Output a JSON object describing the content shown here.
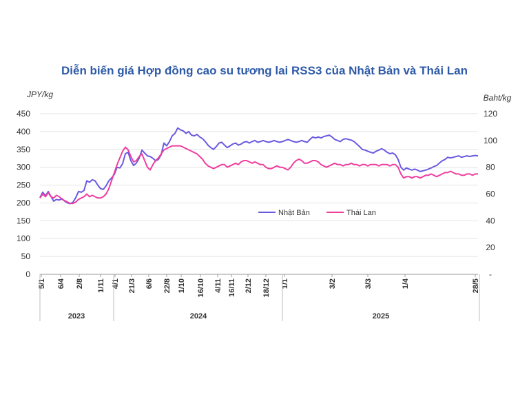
{
  "chart_data": {
    "type": "line",
    "title": "Diễn biến giá Hợp đồng cao su tương lai RSS3 của Nhật Bản và Thái Lan",
    "ylabel_left": "JPY/kg",
    "ylabel_right": "Baht/kg",
    "ylim_left": [
      0,
      450
    ],
    "ylim_right": [
      0,
      120
    ],
    "yticks_left": [
      0,
      50,
      100,
      150,
      200,
      250,
      300,
      350,
      400,
      450
    ],
    "yticks_right": [
      "-",
      "20",
      "40",
      "60",
      "80",
      "100",
      "120"
    ],
    "grid": true,
    "legend": "center",
    "x_tick_labels": [
      "5/1",
      "6/4",
      "2/8",
      "1/11",
      "4/1",
      "21/3",
      "6/6",
      "22/8",
      "1/10",
      "16/10",
      "4/11",
      "16/11",
      "2/12",
      "18/12",
      "1/1",
      "3/2",
      "3/3",
      "1/4",
      "28/5"
    ],
    "years": [
      "2023",
      "2024",
      "2025"
    ],
    "series": [
      {
        "name": "Nhật Bản",
        "axis": "left",
        "color": "#6a5ae0",
        "values": [
          [
            0,
            215
          ],
          [
            4,
            230
          ],
          [
            8,
            220
          ],
          [
            12,
            232
          ],
          [
            16,
            218
          ],
          [
            20,
            205
          ],
          [
            24,
            210
          ],
          [
            28,
            208
          ],
          [
            32,
            212
          ],
          [
            36,
            205
          ],
          [
            40,
            200
          ],
          [
            44,
            198
          ],
          [
            48,
            202
          ],
          [
            52,
            215
          ],
          [
            56,
            232
          ],
          [
            60,
            230
          ],
          [
            64,
            235
          ],
          [
            68,
            262
          ],
          [
            72,
            258
          ],
          [
            76,
            265
          ],
          [
            80,
            262
          ],
          [
            84,
            250
          ],
          [
            88,
            240
          ],
          [
            92,
            238
          ],
          [
            96,
            248
          ],
          [
            100,
            262
          ],
          [
            104,
            270
          ],
          [
            108,
            280
          ],
          [
            112,
            300
          ],
          [
            116,
            298
          ],
          [
            120,
            310
          ],
          [
            124,
            338
          ],
          [
            128,
            342
          ],
          [
            132,
            318
          ],
          [
            136,
            305
          ],
          [
            140,
            312
          ],
          [
            144,
            325
          ],
          [
            148,
            348
          ],
          [
            152,
            340
          ],
          [
            156,
            332
          ],
          [
            160,
            330
          ],
          [
            164,
            325
          ],
          [
            168,
            318
          ],
          [
            172,
            322
          ],
          [
            176,
            335
          ],
          [
            180,
            368
          ],
          [
            184,
            360
          ],
          [
            188,
            372
          ],
          [
            192,
            388
          ],
          [
            196,
            395
          ],
          [
            200,
            410
          ],
          [
            204,
            405
          ],
          [
            208,
            402
          ],
          [
            212,
            395
          ],
          [
            216,
            400
          ],
          [
            220,
            390
          ],
          [
            224,
            388
          ],
          [
            228,
            392
          ],
          [
            232,
            385
          ],
          [
            236,
            380
          ],
          [
            240,
            372
          ],
          [
            244,
            362
          ],
          [
            248,
            355
          ],
          [
            252,
            350
          ],
          [
            256,
            358
          ],
          [
            260,
            368
          ],
          [
            264,
            370
          ],
          [
            268,
            362
          ],
          [
            272,
            355
          ],
          [
            276,
            360
          ],
          [
            280,
            365
          ],
          [
            284,
            368
          ],
          [
            288,
            362
          ],
          [
            292,
            365
          ],
          [
            296,
            370
          ],
          [
            300,
            372
          ],
          [
            304,
            368
          ],
          [
            308,
            372
          ],
          [
            312,
            375
          ],
          [
            316,
            370
          ],
          [
            320,
            372
          ],
          [
            324,
            375
          ],
          [
            328,
            372
          ],
          [
            332,
            370
          ],
          [
            336,
            372
          ],
          [
            340,
            375
          ],
          [
            344,
            372
          ],
          [
            348,
            370
          ],
          [
            352,
            372
          ],
          [
            356,
            375
          ],
          [
            360,
            378
          ],
          [
            364,
            375
          ],
          [
            368,
            372
          ],
          [
            372,
            370
          ],
          [
            376,
            372
          ],
          [
            380,
            375
          ],
          [
            384,
            372
          ],
          [
            388,
            370
          ],
          [
            392,
            378
          ],
          [
            396,
            385
          ],
          [
            400,
            382
          ],
          [
            404,
            385
          ],
          [
            408,
            382
          ],
          [
            412,
            386
          ],
          [
            416,
            388
          ],
          [
            420,
            390
          ],
          [
            424,
            385
          ],
          [
            428,
            378
          ],
          [
            432,
            375
          ],
          [
            436,
            372
          ],
          [
            440,
            378
          ],
          [
            444,
            380
          ],
          [
            448,
            378
          ],
          [
            452,
            376
          ],
          [
            456,
            372
          ],
          [
            460,
            365
          ],
          [
            464,
            358
          ],
          [
            468,
            350
          ],
          [
            472,
            348
          ],
          [
            476,
            345
          ],
          [
            480,
            342
          ],
          [
            484,
            340
          ],
          [
            488,
            345
          ],
          [
            492,
            348
          ],
          [
            496,
            352
          ],
          [
            500,
            348
          ],
          [
            504,
            342
          ],
          [
            508,
            338
          ],
          [
            512,
            340
          ],
          [
            516,
            335
          ],
          [
            520,
            322
          ],
          [
            524,
            300
          ],
          [
            528,
            292
          ],
          [
            532,
            298
          ],
          [
            536,
            295
          ],
          [
            540,
            292
          ],
          [
            544,
            295
          ],
          [
            548,
            292
          ],
          [
            552,
            288
          ],
          [
            556,
            290
          ],
          [
            560,
            292
          ],
          [
            564,
            295
          ],
          [
            568,
            298
          ],
          [
            572,
            302
          ],
          [
            576,
            305
          ],
          [
            580,
            312
          ],
          [
            584,
            318
          ],
          [
            588,
            322
          ],
          [
            592,
            328
          ],
          [
            596,
            326
          ],
          [
            600,
            328
          ],
          [
            604,
            330
          ],
          [
            608,
            332
          ],
          [
            612,
            328
          ],
          [
            616,
            330
          ],
          [
            620,
            332
          ],
          [
            624,
            330
          ],
          [
            628,
            332
          ],
          [
            632,
            333
          ],
          [
            636,
            332
          ]
        ]
      },
      {
        "name": "Thái Lan",
        "axis": "right",
        "color": "#ee3e9f",
        "values": [
          [
            0,
            57
          ],
          [
            4,
            60
          ],
          [
            8,
            58
          ],
          [
            12,
            61
          ],
          [
            16,
            58
          ],
          [
            20,
            57
          ],
          [
            24,
            59
          ],
          [
            28,
            58
          ],
          [
            32,
            56
          ],
          [
            36,
            55
          ],
          [
            40,
            54
          ],
          [
            44,
            53
          ],
          [
            48,
            53
          ],
          [
            52,
            54
          ],
          [
            56,
            56
          ],
          [
            60,
            57
          ],
          [
            64,
            58
          ],
          [
            68,
            60
          ],
          [
            72,
            58
          ],
          [
            76,
            59
          ],
          [
            80,
            58
          ],
          [
            84,
            57
          ],
          [
            88,
            57
          ],
          [
            92,
            58
          ],
          [
            96,
            60
          ],
          [
            100,
            64
          ],
          [
            104,
            70
          ],
          [
            108,
            76
          ],
          [
            112,
            82
          ],
          [
            116,
            87
          ],
          [
            120,
            92
          ],
          [
            124,
            95
          ],
          [
            128,
            93
          ],
          [
            132,
            88
          ],
          [
            136,
            84
          ],
          [
            140,
            85
          ],
          [
            144,
            88
          ],
          [
            148,
            90
          ],
          [
            152,
            85
          ],
          [
            156,
            80
          ],
          [
            160,
            78
          ],
          [
            164,
            82
          ],
          [
            168,
            85
          ],
          [
            172,
            87
          ],
          [
            176,
            90
          ],
          [
            180,
            93
          ],
          [
            184,
            94
          ],
          [
            188,
            95
          ],
          [
            192,
            96
          ],
          [
            196,
            96
          ],
          [
            200,
            96
          ],
          [
            204,
            96
          ],
          [
            208,
            95
          ],
          [
            212,
            94
          ],
          [
            216,
            93
          ],
          [
            220,
            92
          ],
          [
            224,
            91
          ],
          [
            228,
            90
          ],
          [
            232,
            88
          ],
          [
            236,
            86
          ],
          [
            240,
            83
          ],
          [
            244,
            81
          ],
          [
            248,
            80
          ],
          [
            252,
            79
          ],
          [
            256,
            80
          ],
          [
            260,
            81
          ],
          [
            264,
            82
          ],
          [
            268,
            82
          ],
          [
            272,
            80
          ],
          [
            276,
            81
          ],
          [
            280,
            82
          ],
          [
            284,
            83
          ],
          [
            288,
            82
          ],
          [
            292,
            84
          ],
          [
            296,
            85
          ],
          [
            300,
            85
          ],
          [
            304,
            84
          ],
          [
            308,
            83
          ],
          [
            312,
            84
          ],
          [
            316,
            83
          ],
          [
            320,
            82
          ],
          [
            324,
            82
          ],
          [
            328,
            80
          ],
          [
            332,
            79
          ],
          [
            336,
            79
          ],
          [
            340,
            80
          ],
          [
            344,
            81
          ],
          [
            348,
            80
          ],
          [
            352,
            80
          ],
          [
            356,
            79
          ],
          [
            360,
            78
          ],
          [
            364,
            80
          ],
          [
            368,
            83
          ],
          [
            372,
            85
          ],
          [
            376,
            86
          ],
          [
            380,
            85
          ],
          [
            384,
            83
          ],
          [
            388,
            83
          ],
          [
            392,
            84
          ],
          [
            396,
            85
          ],
          [
            400,
            85
          ],
          [
            404,
            84
          ],
          [
            408,
            82
          ],
          [
            412,
            81
          ],
          [
            416,
            80
          ],
          [
            420,
            81
          ],
          [
            424,
            82
          ],
          [
            428,
            83
          ],
          [
            432,
            82
          ],
          [
            436,
            82
          ],
          [
            440,
            81
          ],
          [
            444,
            82
          ],
          [
            448,
            82
          ],
          [
            452,
            83
          ],
          [
            456,
            82
          ],
          [
            460,
            82
          ],
          [
            464,
            81
          ],
          [
            468,
            82
          ],
          [
            472,
            82
          ],
          [
            476,
            81
          ],
          [
            480,
            82
          ],
          [
            484,
            82
          ],
          [
            488,
            82
          ],
          [
            492,
            81
          ],
          [
            496,
            82
          ],
          [
            500,
            82
          ],
          [
            504,
            82
          ],
          [
            508,
            81
          ],
          [
            512,
            82
          ],
          [
            516,
            82
          ],
          [
            520,
            80
          ],
          [
            524,
            75
          ],
          [
            528,
            72
          ],
          [
            532,
            73
          ],
          [
            536,
            73
          ],
          [
            540,
            72
          ],
          [
            544,
            73
          ],
          [
            548,
            73
          ],
          [
            552,
            72
          ],
          [
            556,
            73
          ],
          [
            560,
            74
          ],
          [
            564,
            74
          ],
          [
            568,
            75
          ],
          [
            572,
            74
          ],
          [
            576,
            73
          ],
          [
            580,
            74
          ],
          [
            584,
            75
          ],
          [
            588,
            76
          ],
          [
            592,
            76
          ],
          [
            596,
            77
          ],
          [
            600,
            76
          ],
          [
            604,
            75
          ],
          [
            608,
            75
          ],
          [
            612,
            74
          ],
          [
            616,
            74
          ],
          [
            620,
            75
          ],
          [
            624,
            75
          ],
          [
            628,
            74
          ],
          [
            632,
            75
          ],
          [
            636,
            75
          ]
        ]
      }
    ]
  },
  "colors": {
    "title": "#2e5aa8",
    "grid": "#e3e3e3",
    "axis": "#9a9a9a"
  }
}
